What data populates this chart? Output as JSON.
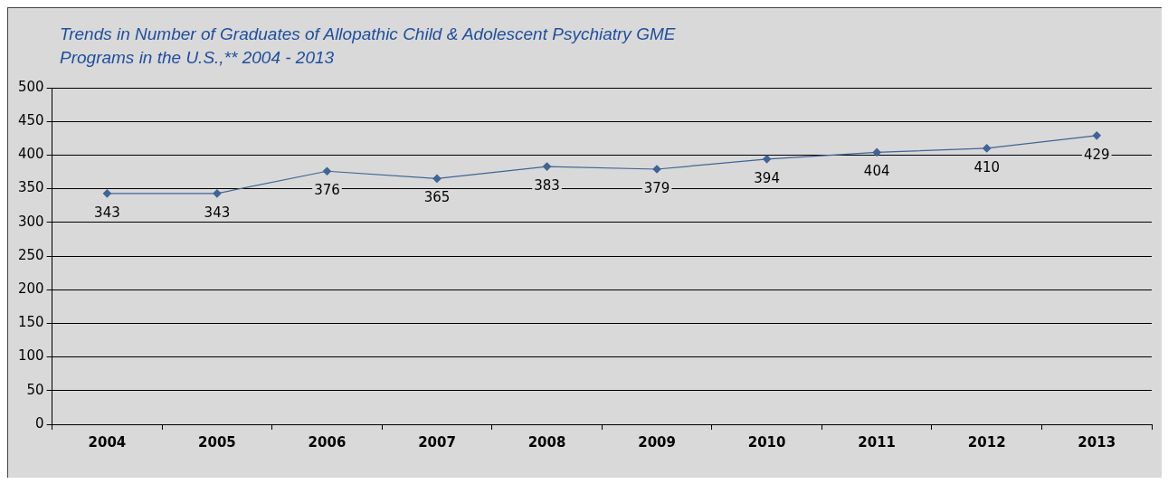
{
  "chart_data": {
    "type": "line",
    "title": "Trends in Number of Graduates of Allopathic Child & Adolescent Psychiatry GME Programs in the U.S.,** 2004 - 2013",
    "categories": [
      "2004",
      "2005",
      "2006",
      "2007",
      "2008",
      "2009",
      "2010",
      "2011",
      "2012",
      "2013"
    ],
    "series": [
      {
        "color": "#3f6496",
        "values": [
          343,
          343,
          376,
          365,
          383,
          379,
          394,
          404,
          410,
          429
        ]
      }
    ],
    "ylim": [
      0,
      500
    ],
    "yticks": [
      0,
      50,
      100,
      150,
      200,
      250,
      300,
      350,
      400,
      450,
      500
    ],
    "grid": "y",
    "legend": false,
    "marker": "diamond",
    "line_style": "solid",
    "data_labels": true
  }
}
